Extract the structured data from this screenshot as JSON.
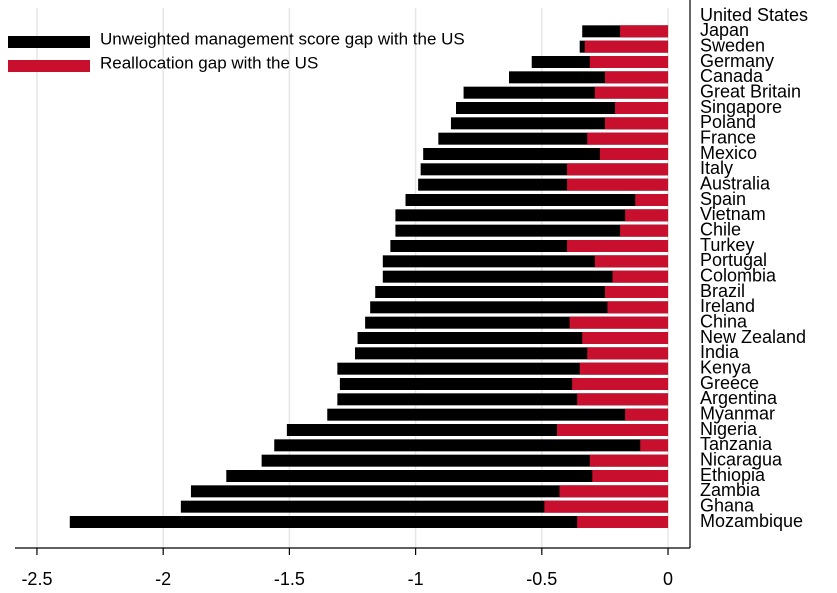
{
  "chart_data": {
    "type": "barh",
    "categories": [
      "United States",
      "Japan",
      "Sweden",
      "Germany",
      "Canada",
      "Great Britain",
      "Singapore",
      "Poland",
      "France",
      "Mexico",
      "Italy",
      "Australia",
      "Spain",
      "Vietnam",
      "Chile",
      "Turkey",
      "Portugal",
      "Colombia",
      "Brazil",
      "Ireland",
      "China",
      "New Zealand",
      "India",
      "Kenya",
      "Greece",
      "Argentina",
      "Myanmar",
      "Nigeria",
      "Tanzania",
      "Nicaragua",
      "Ethiopia",
      "Zambia",
      "Ghana",
      "Mozambique"
    ],
    "series": [
      {
        "name": "Unweighted management score gap with the US",
        "color": "#000000",
        "values": [
          null,
          -0.34,
          -0.35,
          -0.54,
          -0.63,
          -0.81,
          -0.84,
          -0.86,
          -0.91,
          -0.97,
          -0.98,
          -0.99,
          -1.04,
          -1.08,
          -1.08,
          -1.1,
          -1.13,
          -1.13,
          -1.16,
          -1.18,
          -1.2,
          -1.23,
          -1.24,
          -1.31,
          -1.3,
          -1.31,
          -1.35,
          -1.51,
          -1.56,
          -1.61,
          -1.75,
          -1.89,
          -1.93,
          -2.37
        ]
      },
      {
        "name": "Reallocation gap with the US",
        "color": "#c8102e",
        "values": [
          null,
          -0.19,
          -0.33,
          -0.31,
          -0.25,
          -0.29,
          -0.21,
          -0.25,
          -0.32,
          -0.27,
          -0.4,
          -0.4,
          -0.13,
          -0.17,
          -0.19,
          -0.4,
          -0.29,
          -0.22,
          -0.25,
          -0.24,
          -0.39,
          -0.34,
          -0.32,
          -0.35,
          -0.38,
          -0.36,
          -0.17,
          -0.44,
          -0.11,
          -0.31,
          -0.3,
          -0.43,
          -0.49,
          -0.36
        ]
      }
    ],
    "xlim": [
      -2.587,
      0.087
    ],
    "xticks": [
      -2.5,
      -2,
      -1.5,
      -1,
      -0.5,
      0
    ],
    "grid": true,
    "legend": "upper left"
  }
}
